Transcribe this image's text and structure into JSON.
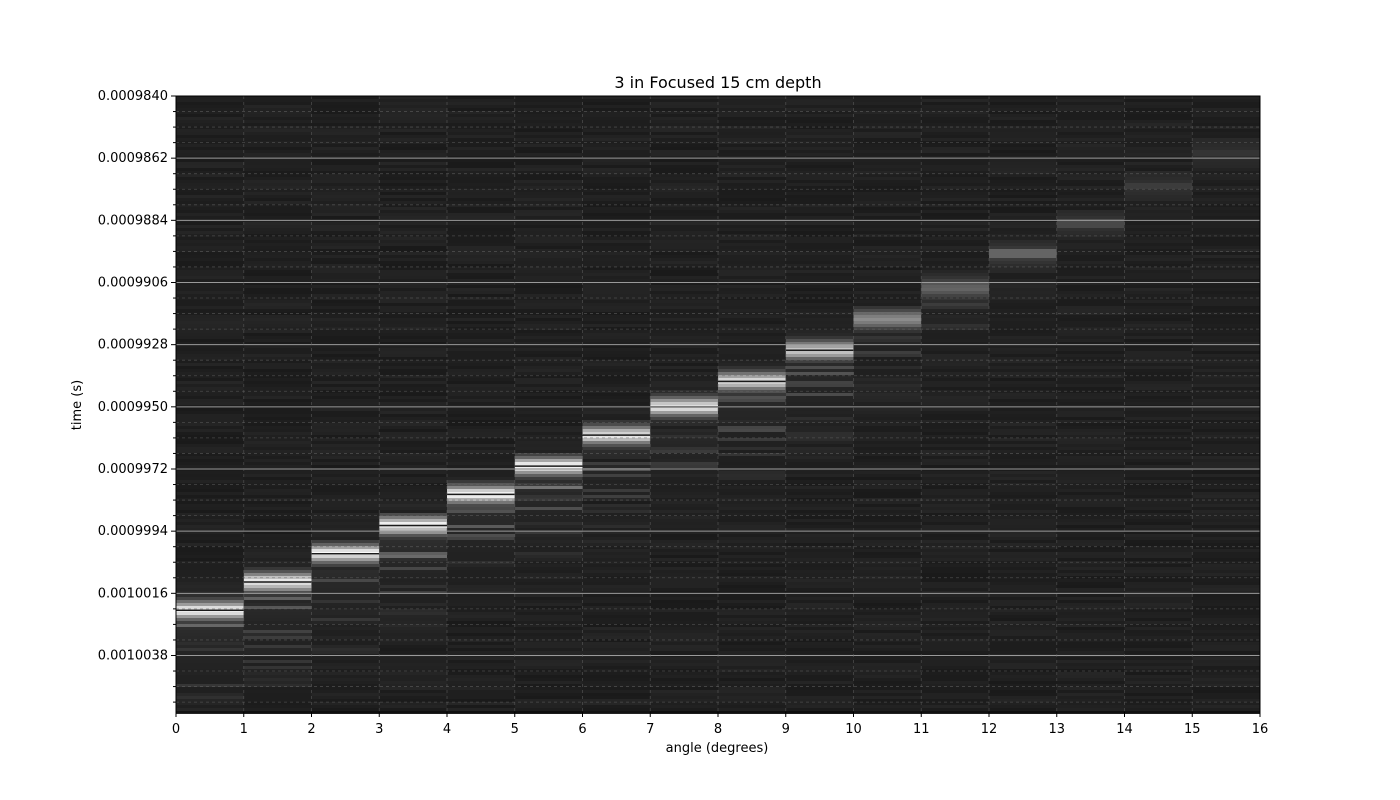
{
  "chart_data": {
    "type": "heatmap",
    "title": "3 in Focused 15 cm depth",
    "xlabel": "angle (degrees)",
    "ylabel": "time (s)",
    "xlim": [
      0,
      16
    ],
    "ylim": [
      0.000984,
      0.0010058
    ],
    "y_inverted": true,
    "colormap": "gray",
    "grid": true,
    "x_ticks": [
      0,
      1,
      2,
      3,
      4,
      5,
      6,
      7,
      8,
      9,
      10,
      11,
      12,
      13,
      14,
      15,
      16
    ],
    "x_tick_labels": [
      "0",
      "1",
      "2",
      "3",
      "4",
      "5",
      "6",
      "7",
      "8",
      "9",
      "10",
      "11",
      "12",
      "13",
      "14",
      "15",
      "16"
    ],
    "y_ticks": [
      0.000984,
      0.0009862,
      0.0009884,
      0.0009906,
      0.0009928,
      0.000995,
      0.0009972,
      0.0009994,
      0.0010016,
      0.0010038
    ],
    "y_tick_labels": [
      "0.0009840",
      "0.0009862",
      "0.0009884",
      "0.0009906",
      "0.0009928",
      "0.0009950",
      "0.0009972",
      "0.0009994",
      "0.0010016",
      "0.0010038"
    ],
    "angles": [
      0,
      1,
      2,
      3,
      4,
      5,
      6,
      7,
      8,
      9,
      10,
      11,
      12,
      13,
      14,
      15
    ],
    "peak_times": [
      0.0010022,
      0.0010012,
      0.0010002,
      0.0009992,
      0.0009981,
      0.0009971,
      0.000996,
      0.000995,
      0.0009941,
      0.000993,
      0.0009919,
      0.0009908,
      0.0009896,
      0.0009885,
      0.0009872,
      0.000986
    ],
    "peak_intensity": [
      1.0,
      1.0,
      1.0,
      1.0,
      1.0,
      1.0,
      0.95,
      0.95,
      0.85,
      0.8,
      0.5,
      0.3,
      0.15,
      0.08,
      0.05,
      0.03
    ]
  }
}
